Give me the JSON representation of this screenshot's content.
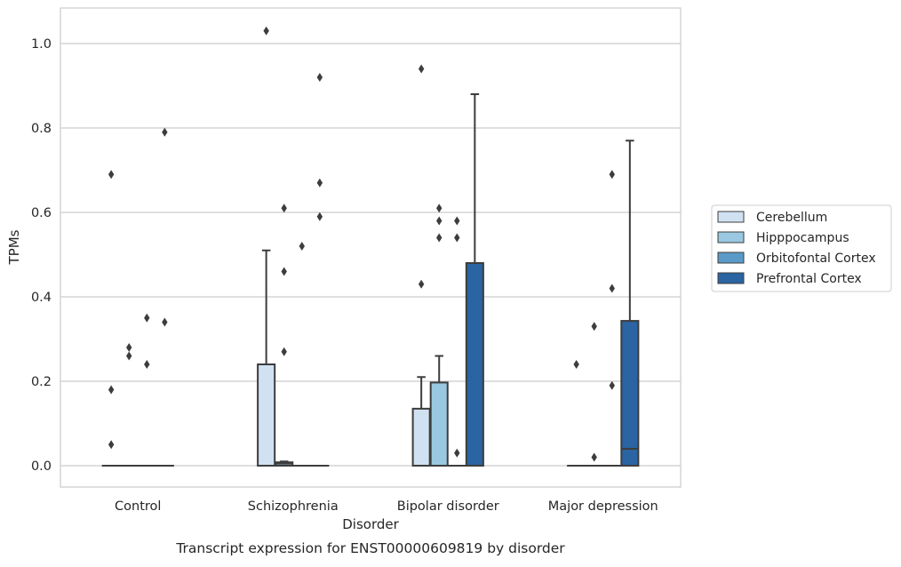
{
  "chart_data": {
    "type": "box",
    "caption": "Transcript expression for ENST00000609819 by disorder",
    "xlabel": "Disorder",
    "ylabel": "TPMs",
    "ylim": [
      -0.05,
      1.08
    ],
    "yticks": [
      0.0,
      0.2,
      0.4,
      0.6,
      0.8,
      1.0
    ],
    "ytick_labels": [
      "0.0",
      "0.2",
      "0.4",
      "0.6",
      "0.8",
      "1.0"
    ],
    "grid": "horizontal",
    "legend_position": "right",
    "categories": [
      "Control",
      "Schizophrenia",
      "Bipolar disorder",
      "Major depression"
    ],
    "series": [
      {
        "name": "Cerebellum",
        "color": "#d0e1f2",
        "boxes": [
          {
            "q1": 0,
            "median": 0,
            "q3": 0,
            "whisker_low": 0,
            "whisker_high": 0,
            "outliers": [
              0.69,
              0.18,
              0.05
            ]
          },
          {
            "q1": 0,
            "median": 0,
            "q3": 0.24,
            "whisker_low": 0,
            "whisker_high": 0.51,
            "outliers": [
              1.03
            ]
          },
          {
            "q1": 0,
            "median": 0,
            "q3": 0.135,
            "whisker_low": 0,
            "whisker_high": 0.21,
            "outliers": [
              0.94,
              0.43
            ]
          },
          {
            "q1": 0,
            "median": 0,
            "q3": 0,
            "whisker_low": 0,
            "whisker_high": 0,
            "outliers": [
              0.24
            ]
          }
        ]
      },
      {
        "name": "Hipppocampus",
        "color": "#9ac8e0",
        "boxes": [
          {
            "q1": 0,
            "median": 0,
            "q3": 0,
            "whisker_low": 0,
            "whisker_high": 0,
            "outliers": [
              0.28,
              0.26
            ]
          },
          {
            "q1": 0,
            "median": 0.005,
            "q3": 0.008,
            "whisker_low": 0,
            "whisker_high": 0.01,
            "outliers": [
              0.61,
              0.46,
              0.27
            ]
          },
          {
            "q1": 0,
            "median": 0,
            "q3": 0.197,
            "whisker_low": 0,
            "whisker_high": 0.26,
            "outliers": [
              0.61,
              0.58,
              0.54
            ]
          },
          {
            "q1": 0,
            "median": 0,
            "q3": 0,
            "whisker_low": 0,
            "whisker_high": 0,
            "outliers": [
              0.33,
              0.02
            ]
          }
        ]
      },
      {
        "name": "Orbitofontal Cortex",
        "color": "#5a9ac8",
        "boxes": [
          {
            "q1": 0,
            "median": 0,
            "q3": 0,
            "whisker_low": 0,
            "whisker_high": 0,
            "outliers": [
              0.35,
              0.24
            ]
          },
          {
            "q1": 0,
            "median": 0,
            "q3": 0,
            "whisker_low": 0,
            "whisker_high": 0,
            "outliers": [
              0.52
            ]
          },
          {
            "q1": 0,
            "median": 0,
            "q3": 0,
            "whisker_low": 0,
            "whisker_high": 0,
            "outliers": [
              0.58,
              0.54,
              0.03
            ]
          },
          {
            "q1": 0,
            "median": 0,
            "q3": 0,
            "whisker_low": 0,
            "whisker_high": 0,
            "outliers": [
              0.69,
              0.42,
              0.19
            ]
          }
        ]
      },
      {
        "name": "Prefrontal Cortex",
        "color": "#2a64a2",
        "boxes": [
          {
            "q1": 0,
            "median": 0,
            "q3": 0,
            "whisker_low": 0,
            "whisker_high": 0,
            "outliers": [
              0.79,
              0.34
            ]
          },
          {
            "q1": 0,
            "median": 0,
            "q3": 0,
            "whisker_low": 0,
            "whisker_high": 0,
            "outliers": [
              0.92,
              0.67,
              0.59
            ]
          },
          {
            "q1": 0,
            "median": 0,
            "q3": 0.48,
            "whisker_low": 0,
            "whisker_high": 0.88,
            "outliers": []
          },
          {
            "q1": 0,
            "median": 0.04,
            "q3": 0.343,
            "whisker_low": 0,
            "whisker_high": 0.77,
            "outliers": []
          }
        ]
      }
    ]
  }
}
